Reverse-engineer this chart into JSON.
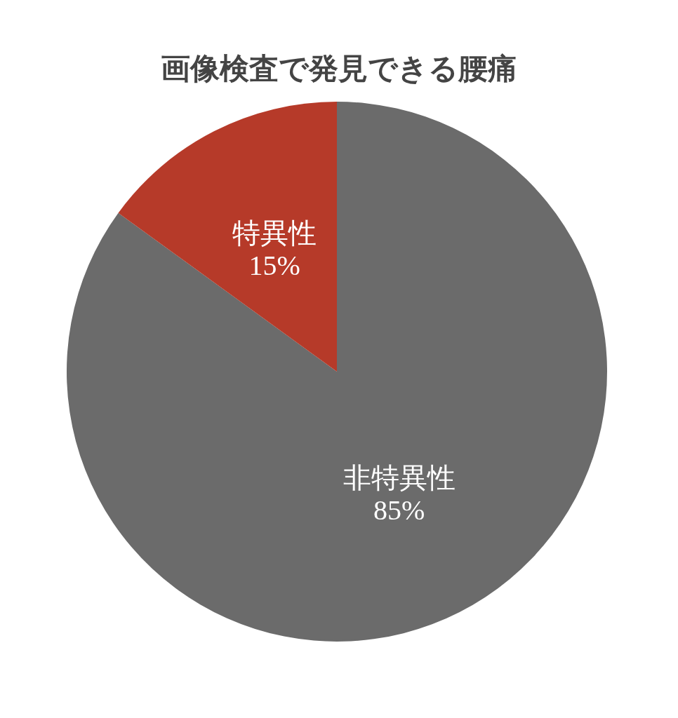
{
  "chart_data": {
    "type": "pie",
    "title": "画像検査で発見できる腰痛",
    "categories": [
      "非特異性",
      "特異性"
    ],
    "values": [
      85,
      15
    ],
    "colors": [
      "#6b6b6b",
      "#b63a29"
    ],
    "value_labels": [
      "85%",
      "15%"
    ],
    "legend": false
  }
}
